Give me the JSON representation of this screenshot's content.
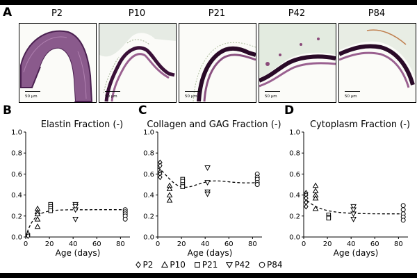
{
  "panel_labels": [
    "A",
    "B",
    "C",
    "D"
  ],
  "micrographs": [
    {
      "label": "P2",
      "scale": "50 µm"
    },
    {
      "label": "P10",
      "scale": "50 µm"
    },
    {
      "label": "P21",
      "scale": "50 µm"
    },
    {
      "label": "P42",
      "scale": "50 µm"
    },
    {
      "label": "P84",
      "scale": "50 µm"
    }
  ],
  "legend": [
    {
      "marker": "diamond",
      "label": "P2"
    },
    {
      "marker": "triangle-up",
      "label": "P10"
    },
    {
      "marker": "square",
      "label": "P21"
    },
    {
      "marker": "triangle-down",
      "label": "P42"
    },
    {
      "marker": "circle",
      "label": "P84"
    }
  ],
  "chart_data": [
    {
      "type": "scatter",
      "title": "Elastin Fraction (-)",
      "xlabel": "Age (days)",
      "ylabel": "",
      "xlim": [
        0,
        88
      ],
      "ylim": [
        0,
        1
      ],
      "xticks": [
        0,
        20,
        40,
        60,
        80
      ],
      "yticks": [
        0.0,
        0.2,
        0.4,
        0.6,
        0.8,
        1.0
      ],
      "ytick_labels": [
        "0.0",
        "0.2",
        "0.4",
        "0.6",
        "0.8",
        "1.0"
      ],
      "series": [
        {
          "name": "P2",
          "marker": "diamond",
          "points": [
            [
              2,
              0.02
            ],
            [
              2,
              0.03
            ],
            [
              2,
              0.01
            ]
          ]
        },
        {
          "name": "P10",
          "marker": "triangle-up",
          "points": [
            [
              10,
              0.27
            ],
            [
              10,
              0.24
            ],
            [
              10,
              0.22
            ],
            [
              10,
              0.17
            ],
            [
              10,
              0.1
            ]
          ]
        },
        {
          "name": "P21",
          "marker": "square",
          "points": [
            [
              21,
              0.31
            ],
            [
              21,
              0.29
            ],
            [
              21,
              0.27
            ],
            [
              21,
              0.25
            ]
          ]
        },
        {
          "name": "P42",
          "marker": "triangle-down",
          "points": [
            [
              42,
              0.31
            ],
            [
              42,
              0.29
            ],
            [
              42,
              0.26
            ],
            [
              42,
              0.17
            ]
          ]
        },
        {
          "name": "P84",
          "marker": "circle",
          "points": [
            [
              84,
              0.26
            ],
            [
              84,
              0.24
            ],
            [
              84,
              0.22
            ],
            [
              84,
              0.2
            ],
            [
              84,
              0.17
            ]
          ]
        }
      ],
      "fit": {
        "style": "dashed",
        "plateau": 0.26,
        "start": 0.0,
        "rate": 0.15
      }
    },
    {
      "type": "scatter",
      "title": "Collagen and GAG Fraction (-)",
      "xlabel": "Age (days)",
      "ylabel": "",
      "xlim": [
        0,
        88
      ],
      "ylim": [
        0,
        1
      ],
      "xticks": [
        0,
        20,
        40,
        60,
        80
      ],
      "yticks": [
        0.0,
        0.2,
        0.4,
        0.6,
        0.8,
        1.0
      ],
      "ytick_labels": [
        "0.0",
        "0.2",
        "0.4",
        "0.6",
        "0.8",
        "1.0"
      ],
      "series": [
        {
          "name": "P2",
          "marker": "diamond",
          "points": [
            [
              2,
              0.71
            ],
            [
              2,
              0.68
            ],
            [
              2,
              0.62
            ],
            [
              2,
              0.6
            ],
            [
              2,
              0.57
            ]
          ]
        },
        {
          "name": "P10",
          "marker": "triangle-up",
          "points": [
            [
              10,
              0.49
            ],
            [
              10,
              0.46
            ],
            [
              10,
              0.4
            ],
            [
              10,
              0.35
            ]
          ]
        },
        {
          "name": "P21",
          "marker": "square",
          "points": [
            [
              21,
              0.55
            ],
            [
              21,
              0.53
            ],
            [
              21,
              0.5
            ],
            [
              21,
              0.48
            ]
          ]
        },
        {
          "name": "P42",
          "marker": "triangle-down",
          "points": [
            [
              42,
              0.66
            ],
            [
              42,
              0.52
            ],
            [
              42,
              0.43
            ],
            [
              42,
              0.41
            ]
          ]
        },
        {
          "name": "P84",
          "marker": "circle",
          "points": [
            [
              84,
              0.6
            ],
            [
              84,
              0.57
            ],
            [
              84,
              0.55
            ],
            [
              84,
              0.52
            ],
            [
              84,
              0.5
            ]
          ]
        }
      ],
      "fit": {
        "style": "dashed",
        "type": "damped",
        "base": 0.52,
        "amp": 0.14,
        "rate": 0.12,
        "damp": 0.045
      }
    },
    {
      "type": "scatter",
      "title": "Cytoplasm Fraction (-)",
      "xlabel": "Age (days)",
      "ylabel": "",
      "xlim": [
        0,
        88
      ],
      "ylim": [
        0,
        1
      ],
      "xticks": [
        0,
        20,
        40,
        60,
        80
      ],
      "yticks": [
        0.0,
        0.2,
        0.4,
        0.6,
        0.8,
        1.0
      ],
      "ytick_labels": [
        "0.0",
        "0.2",
        "0.4",
        "0.6",
        "0.8",
        "1.0"
      ],
      "series": [
        {
          "name": "P2",
          "marker": "diamond",
          "points": [
            [
              2,
              0.42
            ],
            [
              2,
              0.4
            ],
            [
              2,
              0.37
            ],
            [
              2,
              0.33
            ],
            [
              2,
              0.29
            ]
          ]
        },
        {
          "name": "P10",
          "marker": "triangle-up",
          "points": [
            [
              10,
              0.49
            ],
            [
              10,
              0.44
            ],
            [
              10,
              0.4
            ],
            [
              10,
              0.37
            ],
            [
              10,
              0.27
            ]
          ]
        },
        {
          "name": "P21",
          "marker": "square",
          "points": [
            [
              21,
              0.21
            ],
            [
              21,
              0.19
            ],
            [
              21,
              0.18
            ]
          ]
        },
        {
          "name": "P42",
          "marker": "triangle-down",
          "points": [
            [
              42,
              0.29
            ],
            [
              42,
              0.26
            ],
            [
              42,
              0.22
            ],
            [
              42,
              0.17
            ]
          ]
        },
        {
          "name": "P84",
          "marker": "circle",
          "points": [
            [
              84,
              0.3
            ],
            [
              84,
              0.26
            ],
            [
              84,
              0.22
            ],
            [
              84,
              0.19
            ],
            [
              84,
              0.16
            ]
          ]
        }
      ],
      "fit": {
        "style": "dashed",
        "plateau": 0.22,
        "start": 0.38,
        "rate": 0.08
      }
    }
  ]
}
